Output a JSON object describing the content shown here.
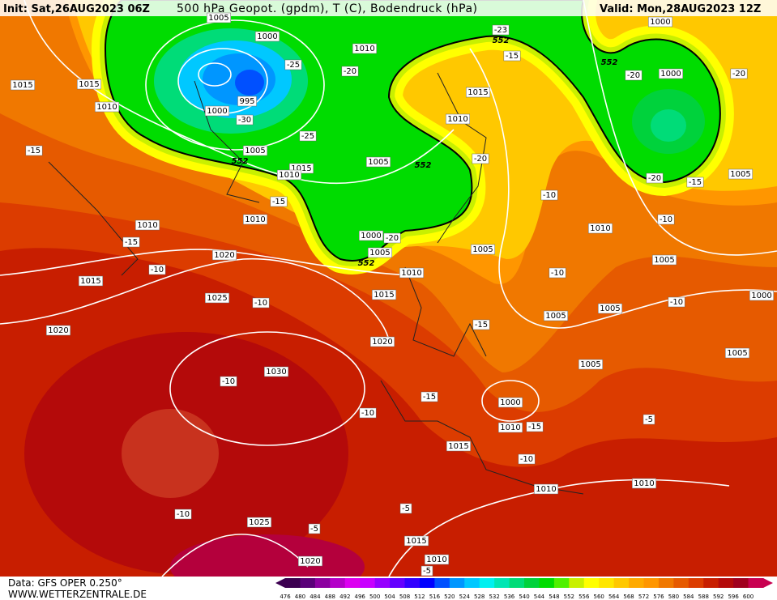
{
  "header": {
    "init": "Init: Sat,26AUG2023 06Z",
    "title": "500 hPa Geopot. (gpdm), T (C), Bodendruck (hPa)",
    "valid": "Valid: Mon,28AUG2023 12Z"
  },
  "isobar_labels": [
    1005,
    1000,
    1010,
    1015,
    1015,
    1010,
    1000,
    995,
    1005,
    1015,
    1010,
    1005,
    1010,
    1015,
    1000,
    1000,
    1005,
    1010,
    1010,
    1000,
    1005,
    1010,
    1015,
    1020,
    1015,
    1025,
    1020,
    1020,
    1030,
    1005,
    1010,
    1005,
    1005,
    1005,
    1005,
    1005,
    1000,
    1000,
    1010,
    1015,
    1010,
    1010,
    1025,
    1015,
    1010,
    1020
  ],
  "temperature_labels": [
    -23,
    -25,
    -20,
    -30,
    -25,
    -15,
    -15,
    -20,
    -20,
    -20,
    -15,
    -20,
    -15,
    -10,
    -10,
    -10,
    -10,
    -15,
    -20,
    -10,
    -10,
    -15,
    -10,
    -15,
    -10,
    -15,
    -5,
    -10,
    -10,
    -5,
    -5,
    -5
  ],
  "height_labels": [
    552,
    552,
    552,
    552,
    552
  ],
  "footer": {
    "data": "Data: GFS OPER 0.250°",
    "site": "WWW.WETTERZENTRALE.DE"
  },
  "colorbar": {
    "labels": [
      476,
      480,
      484,
      488,
      492,
      496,
      500,
      504,
      508,
      512,
      516,
      520,
      524,
      528,
      532,
      536,
      540,
      544,
      548,
      552,
      556,
      560,
      564,
      568,
      572,
      576,
      580,
      584,
      588,
      592,
      596,
      600
    ],
    "colors": [
      "#3c0050",
      "#5a0078",
      "#8c00a0",
      "#b400c8",
      "#dc00f0",
      "#c800ff",
      "#9600ff",
      "#6400ff",
      "#3200ff",
      "#0000ff",
      "#0050ff",
      "#0096ff",
      "#00c8ff",
      "#00f0f0",
      "#00e6b4",
      "#00dc78",
      "#00d23c",
      "#00dc00",
      "#50f000",
      "#c8f000",
      "#ffff00",
      "#ffe600",
      "#ffc800",
      "#ffaa00",
      "#ff9600",
      "#f07800",
      "#e65a00",
      "#dc3c00",
      "#c81e00",
      "#b40a0a",
      "#a0001e",
      "#c80050"
    ]
  }
}
